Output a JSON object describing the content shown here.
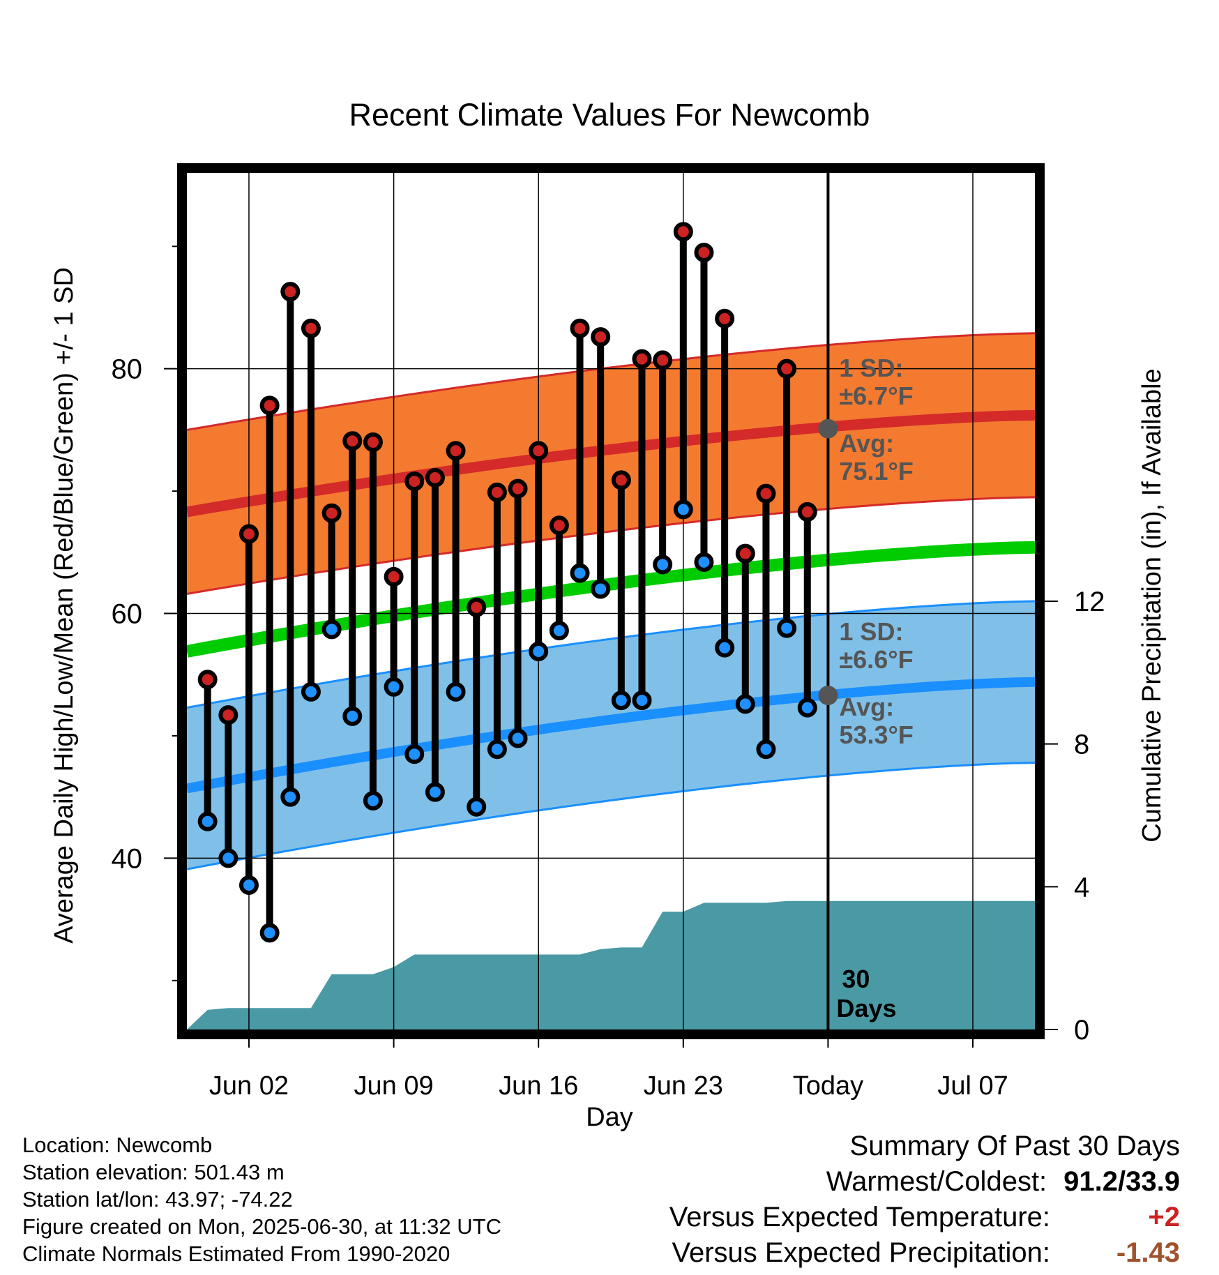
{
  "chart_data": {
    "type": "line",
    "title": "Recent Climate Values For Newcomb",
    "xlabel": "Day",
    "ylabel": "Average Daily High/Low/Mean (Red/Blue/Green) +/- 1 SD",
    "y2label": "Cumulative Precipitation (in), If Available",
    "x_ticks": [
      "Jun 02",
      "Jun 09",
      "Jun 16",
      "Jun 23",
      "Today",
      "Jul 07"
    ],
    "x_range": [
      "2025-05-30",
      "2025-07-10"
    ],
    "ylim": [
      26,
      96
    ],
    "y_ticks": [
      40,
      60,
      80
    ],
    "y2lim": [
      0,
      24
    ],
    "y2_ticks": [
      0,
      4,
      8,
      12
    ],
    "grid": true,
    "dates": [
      "2025-05-31",
      "2025-06-01",
      "2025-06-02",
      "2025-06-03",
      "2025-06-04",
      "2025-06-05",
      "2025-06-06",
      "2025-06-07",
      "2025-06-08",
      "2025-06-09",
      "2025-06-10",
      "2025-06-11",
      "2025-06-12",
      "2025-06-13",
      "2025-06-14",
      "2025-06-15",
      "2025-06-16",
      "2025-06-17",
      "2025-06-18",
      "2025-06-19",
      "2025-06-20",
      "2025-06-21",
      "2025-06-22",
      "2025-06-23",
      "2025-06-24",
      "2025-06-25",
      "2025-06-26",
      "2025-06-27",
      "2025-06-28",
      "2025-06-29"
    ],
    "highs": [
      54.6,
      51.7,
      66.5,
      77.0,
      86.3,
      83.3,
      68.2,
      74.1,
      74.0,
      63.0,
      70.8,
      71.1,
      73.3,
      60.5,
      69.9,
      70.2,
      73.3,
      67.2,
      83.3,
      82.6,
      70.9,
      80.8,
      80.7,
      91.2,
      89.5,
      84.1,
      64.9,
      69.8,
      80.0,
      68.3
    ],
    "lows": [
      43.0,
      40.0,
      37.8,
      33.9,
      45.0,
      53.6,
      58.7,
      51.6,
      44.7,
      54.0,
      48.5,
      45.4,
      53.6,
      44.2,
      48.9,
      49.8,
      56.9,
      58.6,
      63.3,
      62.0,
      52.9,
      52.9,
      64.0,
      68.5,
      64.2,
      57.2,
      52.6,
      48.9,
      58.8,
      52.3
    ],
    "normals": {
      "dates": [
        "2025-05-30",
        "2025-07-10"
      ],
      "high_avg_start": 68.3,
      "high_avg_end": 76.2,
      "high_sd": 6.7,
      "mean_start": 56.9,
      "mean_end": 65.4,
      "low_avg_start": 45.7,
      "low_avg_end": 54.4,
      "low_sd": 6.6
    },
    "precipitation": {
      "dates": [
        "2025-05-30",
        "2025-05-31",
        "2025-06-01",
        "2025-06-02",
        "2025-06-03",
        "2025-06-04",
        "2025-06-05",
        "2025-06-06",
        "2025-06-07",
        "2025-06-08",
        "2025-06-09",
        "2025-06-10",
        "2025-06-11",
        "2025-06-12",
        "2025-06-13",
        "2025-06-14",
        "2025-06-15",
        "2025-06-16",
        "2025-06-17",
        "2025-06-18",
        "2025-06-19",
        "2025-06-20",
        "2025-06-21",
        "2025-06-22",
        "2025-06-23",
        "2025-06-24",
        "2025-06-25",
        "2025-06-26",
        "2025-06-27",
        "2025-06-28",
        "2025-06-29",
        "2025-06-30",
        "2025-07-10"
      ],
      "values": [
        0.0,
        0.55,
        0.6,
        0.6,
        0.6,
        0.6,
        0.6,
        1.55,
        1.55,
        1.55,
        1.75,
        2.1,
        2.1,
        2.1,
        2.1,
        2.1,
        2.1,
        2.1,
        2.1,
        2.1,
        2.25,
        2.3,
        2.3,
        3.3,
        3.3,
        3.55,
        3.55,
        3.55,
        3.55,
        3.6,
        3.6,
        3.6,
        3.6
      ]
    },
    "annotations": {
      "high_sd": "1 SD:",
      "high_sd_value": "±6.7°F",
      "high_avg": "Avg:",
      "high_avg_value": "75.1°F",
      "low_sd": "1 SD:",
      "low_sd_value": "±6.6°F",
      "low_avg": "Avg:",
      "low_avg_value": "53.3°F",
      "days_number": "30",
      "days_label": "Days",
      "today_high_avg": 75.1,
      "today_low_avg": 53.3
    },
    "colors": {
      "high_band": "#f47a30",
      "high_line": "#d42a2a",
      "mean_line": "#00cc00",
      "low_band": "#80c0e8",
      "low_line": "#1a8fff",
      "precip": "#4a9aa5",
      "high_dot": "#cc2222",
      "low_dot": "#1e90ff",
      "annotation_text": "#555555"
    }
  },
  "footer": {
    "location": "Location: Newcomb",
    "elevation": "Station elevation: 501.43 m",
    "latlon": "Station lat/lon: 43.97; -74.22",
    "created": "Figure created on Mon, 2025-06-30, at 11:32 UTC",
    "normals": "Climate Normals Estimated From 1990-2020"
  },
  "summary": {
    "title": "Summary Of Past 30 Days",
    "warm_cold_label": "Warmest/Coldest:",
    "warm_cold_value": "91.2/33.9",
    "temp_label": "Versus Expected Temperature:",
    "temp_value": "+2",
    "precip_label": "Versus Expected Precipitation:",
    "precip_value": "-1.43"
  }
}
